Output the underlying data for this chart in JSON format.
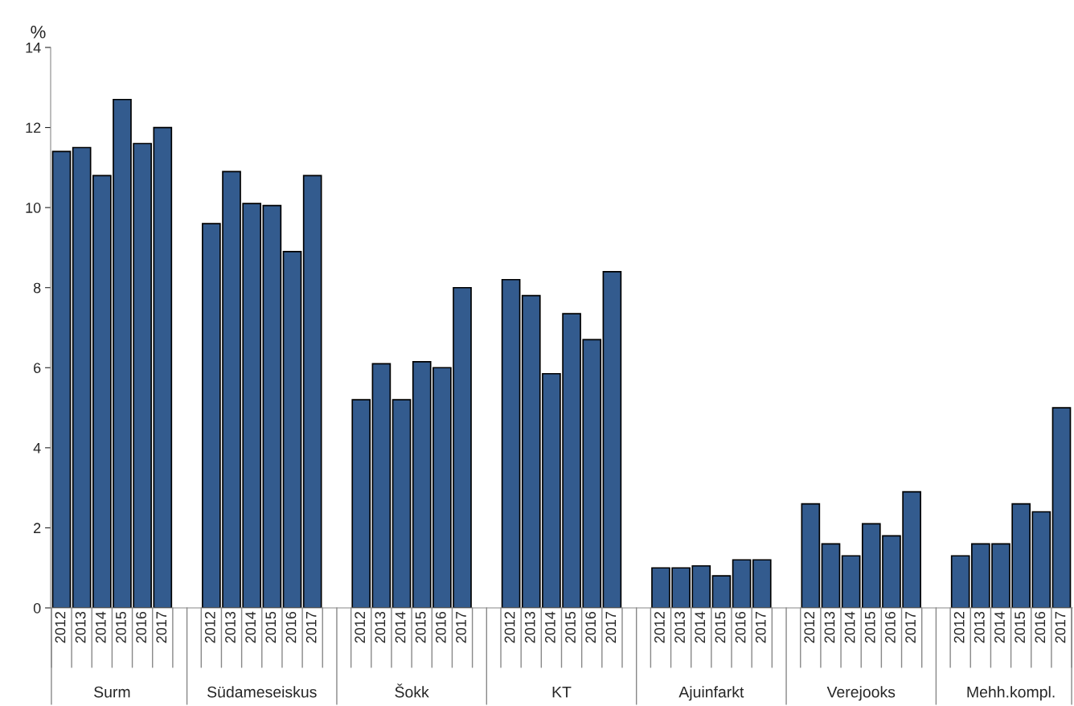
{
  "chart_data": {
    "type": "bar",
    "ylabel": "%",
    "categories": [
      "Surm",
      "Südameseiskus",
      "Šokk",
      "KT",
      "Ajuinfarkt",
      "Verejooks",
      "Mehh.kompl."
    ],
    "series": [
      {
        "name": "2012",
        "color": "#335b8e",
        "values": [
          11.4,
          9.6,
          5.2,
          8.2,
          1.0,
          2.6,
          1.3
        ]
      },
      {
        "name": "2013",
        "color": "#335b8e",
        "values": [
          11.5,
          10.9,
          6.1,
          7.8,
          1.0,
          1.6,
          1.6
        ]
      },
      {
        "name": "2014",
        "color": "#335b8e",
        "values": [
          10.8,
          10.1,
          5.2,
          5.85,
          1.05,
          1.3,
          1.6
        ]
      },
      {
        "name": "2015",
        "color": "#335b8e",
        "values": [
          12.7,
          10.05,
          6.15,
          7.35,
          0.8,
          2.1,
          2.6
        ]
      },
      {
        "name": "2016",
        "color": "#335b8e",
        "values": [
          11.6,
          8.9,
          6.0,
          6.7,
          1.2,
          1.8,
          2.4
        ]
      },
      {
        "name": "2017",
        "color": "#335b8e",
        "values": [
          12.0,
          10.8,
          8.0,
          8.4,
          1.2,
          2.9,
          5.0
        ]
      }
    ],
    "ylim": [
      0,
      14
    ],
    "yticks": [
      0,
      2,
      4,
      6,
      8,
      10,
      12,
      14
    ],
    "grid": false,
    "legend": false
  }
}
